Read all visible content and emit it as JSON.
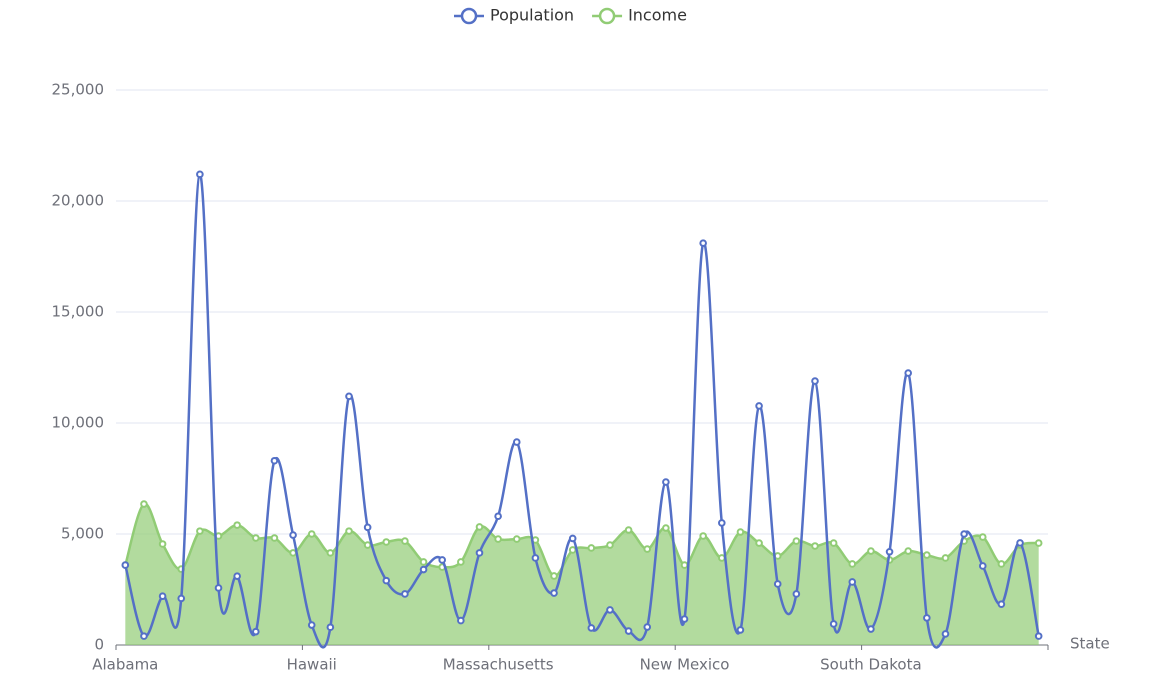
{
  "chart_data": {
    "type": "line",
    "x_label": "State",
    "categories": [
      "Alabama",
      null,
      null,
      null,
      null,
      null,
      null,
      null,
      null,
      null,
      "Hawaii",
      null,
      null,
      null,
      null,
      null,
      null,
      null,
      null,
      null,
      "Massachusetts",
      null,
      null,
      null,
      null,
      null,
      null,
      null,
      null,
      null,
      "New Mexico",
      null,
      null,
      null,
      null,
      null,
      null,
      null,
      null,
      null,
      "South Dakota",
      null,
      null,
      null,
      null,
      null,
      null,
      null,
      null,
      null
    ],
    "series": [
      {
        "name": "Population",
        "color": "#5470c6",
        "smooth": true,
        "area": false,
        "values": [
          3600,
          400,
          2200,
          2100,
          21200,
          2570,
          3100,
          600,
          8300,
          4950,
          900,
          800,
          11200,
          5300,
          2900,
          2300,
          3400,
          3830,
          1100,
          4150,
          5800,
          9140,
          3920,
          2340,
          4800,
          770,
          1580,
          630,
          810,
          7340,
          1170,
          18100,
          5500,
          680,
          10770,
          2750,
          2300,
          11890,
          950,
          2840,
          720,
          4200,
          12250,
          1220,
          500,
          5000,
          3560,
          1840,
          4600,
          400
        ]
      },
      {
        "name": "Income",
        "color": "#91cc75",
        "smooth": true,
        "area": true,
        "values": [
          3600,
          6350,
          4550,
          3420,
          5130,
          4910,
          5400,
          4820,
          4820,
          4150,
          5000,
          4150,
          5130,
          4500,
          4640,
          4680,
          3740,
          3510,
          3740,
          5320,
          4770,
          4770,
          4730,
          3110,
          4280,
          4370,
          4500,
          5180,
          4320,
          5270,
          3600,
          4910,
          3920,
          5090,
          4590,
          4010,
          4680,
          4460,
          4590,
          3650,
          4230,
          3830,
          4230,
          4050,
          3920,
          4680,
          4860,
          3650,
          4500,
          4590
        ]
      }
    ],
    "ylim": [
      0,
      25000
    ],
    "yticks": [
      0,
      {
        "value": 5000,
        "label": "5,000"
      },
      {
        "value": 10000,
        "label": "10,000"
      },
      {
        "value": 15000,
        "label": "15,000"
      },
      {
        "value": 20000,
        "label": "20,000"
      },
      {
        "value": 25000,
        "label": "25,000"
      }
    ],
    "grid": true,
    "legend": "top"
  }
}
